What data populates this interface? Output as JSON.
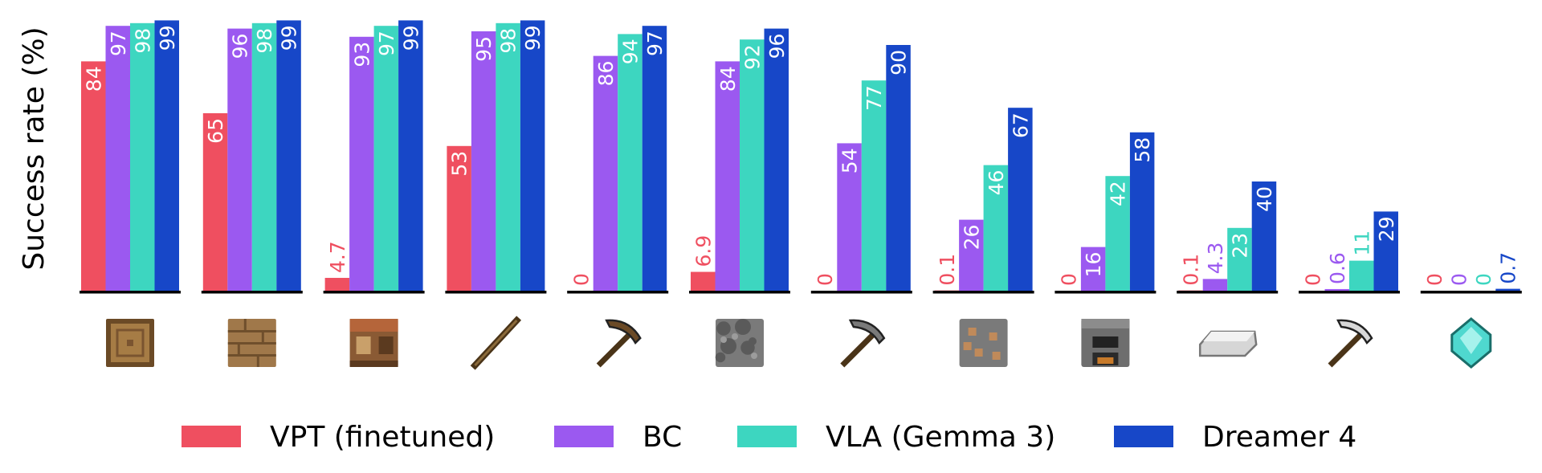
{
  "chart_data": {
    "type": "bar",
    "ylabel": "Success rate (%)",
    "ylim": [
      0,
      100
    ],
    "categories": [
      "log",
      "planks",
      "crafting table",
      "stick",
      "wooden pickaxe",
      "cobblestone",
      "stone pickaxe",
      "iron ore",
      "furnace",
      "iron ingot",
      "iron pickaxe",
      "diamond"
    ],
    "category_icons": [
      "log-icon",
      "planks-icon",
      "crafting-table-icon",
      "stick-icon",
      "wooden-pickaxe-icon",
      "cobblestone-icon",
      "stone-pickaxe-icon",
      "iron-ore-icon",
      "furnace-icon",
      "iron-ingot-icon",
      "iron-pickaxe-icon",
      "diamond-icon"
    ],
    "series": [
      {
        "name": "VPT (finetuned)",
        "color": "#ef4f60",
        "values": [
          84,
          65,
          4.7,
          53,
          0,
          6.9,
          0,
          0.1,
          0,
          0.1,
          0,
          0
        ],
        "labels": [
          "84",
          "65",
          "4.7",
          "53",
          "0",
          "6.9",
          "0",
          "0.1",
          "0",
          "0.1",
          "0",
          "0"
        ]
      },
      {
        "name": "BC",
        "color": "#9b59f0",
        "values": [
          97,
          96,
          93,
          95,
          86,
          84,
          54,
          26,
          16,
          4.3,
          0.6,
          0
        ],
        "labels": [
          "97",
          "96",
          "93",
          "95",
          "86",
          "84",
          "54",
          "26",
          "16",
          "4.3",
          "0.6",
          "0"
        ]
      },
      {
        "name": "VLA (Gemma 3)",
        "color": "#3dd6c0",
        "values": [
          98,
          98,
          97,
          98,
          94,
          92,
          77,
          46,
          42,
          23,
          11,
          0
        ],
        "labels": [
          "98",
          "98",
          "97",
          "98",
          "94",
          "92",
          "77",
          "46",
          "42",
          "23",
          "11",
          "0"
        ]
      },
      {
        "name": "Dreamer 4",
        "color": "#1747c8",
        "values": [
          99,
          99,
          99,
          99,
          97,
          96,
          90,
          67,
          58,
          40,
          29,
          0.7
        ],
        "labels": [
          "99",
          "99",
          "99",
          "99",
          "97",
          "96",
          "90",
          "67",
          "58",
          "40",
          "29",
          "0.7"
        ]
      }
    ],
    "legend_position": "bottom",
    "grid": false
  }
}
